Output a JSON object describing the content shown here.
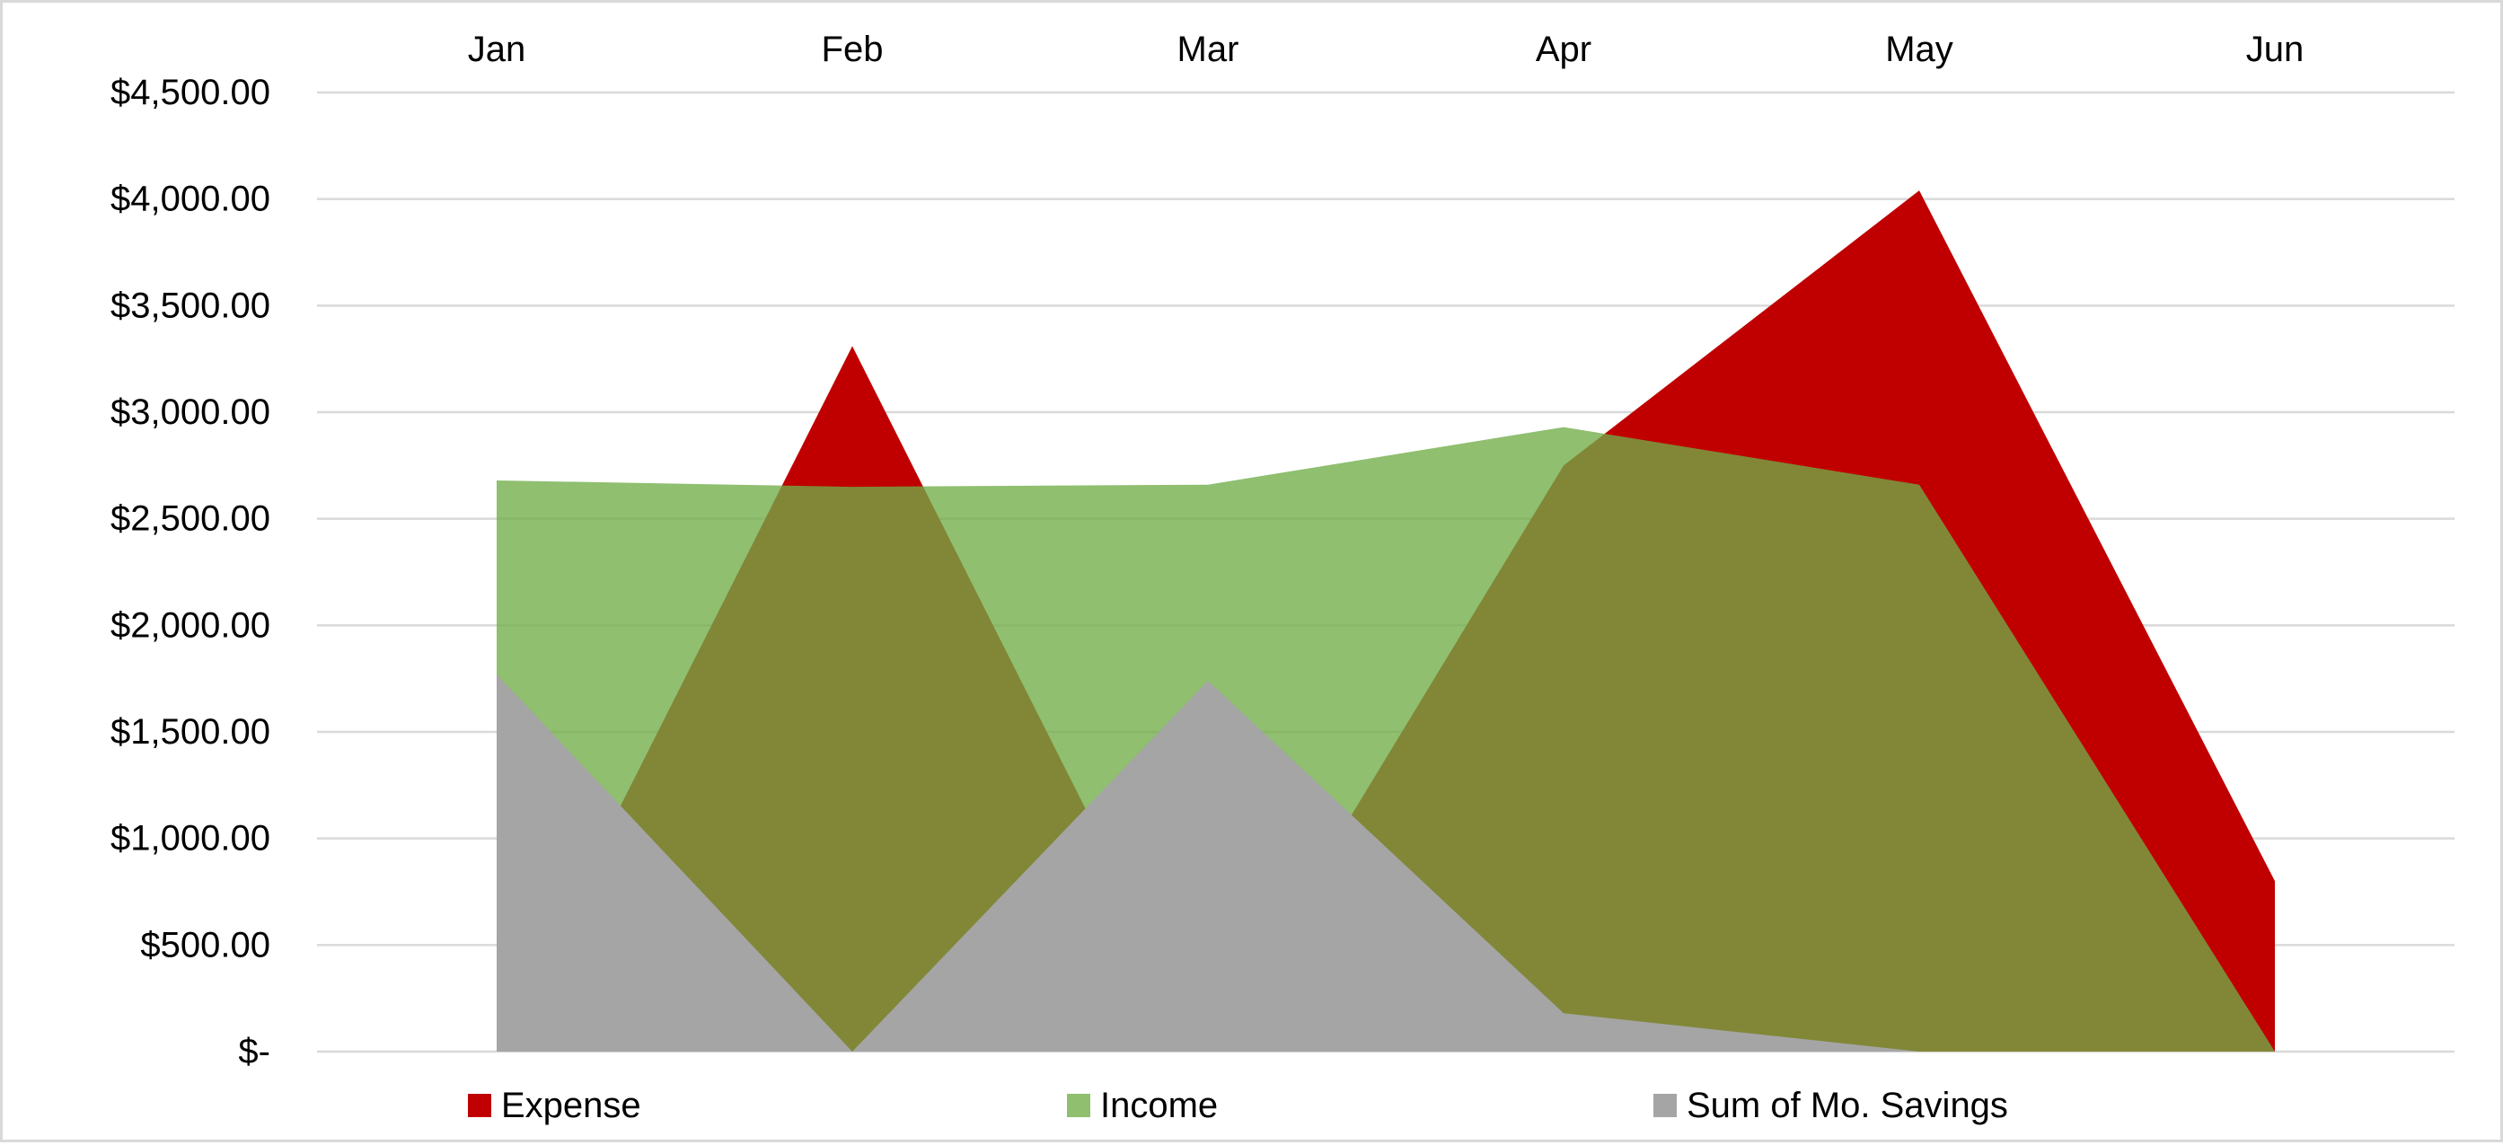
{
  "chart_data": {
    "type": "area",
    "categories": [
      "Jan",
      "Feb",
      "Mar",
      "Apr",
      "May",
      "Jun"
    ],
    "x_axis_position": "top",
    "ylim": [
      0,
      4500
    ],
    "y_ticks": [
      {
        "value": 0,
        "label": "$-"
      },
      {
        "value": 500,
        "label": "$500.00"
      },
      {
        "value": 1000,
        "label": "$1,000.00"
      },
      {
        "value": 1500,
        "label": "$1,500.00"
      },
      {
        "value": 2000,
        "label": "$2,000.00"
      },
      {
        "value": 2500,
        "label": "$2,500.00"
      },
      {
        "value": 3000,
        "label": "$3,000.00"
      },
      {
        "value": 3500,
        "label": "$3,500.00"
      },
      {
        "value": 4000,
        "label": "$4,000.00"
      },
      {
        "value": 4500,
        "label": "$4,500.00"
      }
    ],
    "grid": true,
    "legend_position": "bottom",
    "series": [
      {
        "name": "Expense",
        "color": "#c00000",
        "opacity": 1,
        "values": [
          0,
          3310,
          0,
          2750,
          4040,
          800
        ]
      },
      {
        "name": "Income",
        "color": "#70ad47",
        "opacity": 0.78,
        "values": [
          2680,
          2650,
          2660,
          2930,
          2660,
          0
        ]
      },
      {
        "name": "Sum of Mo. Savings",
        "color": "#a5a5a5",
        "opacity": 1,
        "values": [
          1770,
          0,
          1740,
          180,
          0,
          0
        ]
      }
    ]
  }
}
